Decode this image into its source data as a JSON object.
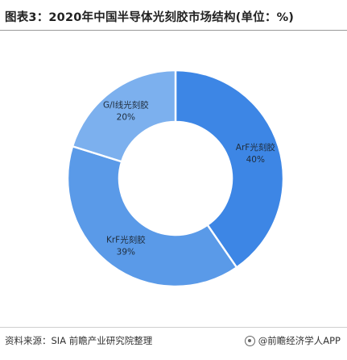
{
  "header": {
    "title": "图表3：2020年中国半导体光刻胶市场结构(单位：%)"
  },
  "chart_data": {
    "type": "pie",
    "variant": "donut",
    "categories": [
      "ArF光刻胶",
      "KrF光刻胶",
      "G/I线光刻胶"
    ],
    "values": [
      40,
      39,
      20
    ],
    "value_labels": [
      "40%",
      "39%",
      "20%"
    ],
    "colors": [
      "#3d86e5",
      "#5a9ae8",
      "#7cb0ee"
    ],
    "legend": "none"
  },
  "footer": {
    "source": "资料来源：SIA 前瞻产业研究院整理",
    "brand": "@前瞻经济学人APP"
  }
}
